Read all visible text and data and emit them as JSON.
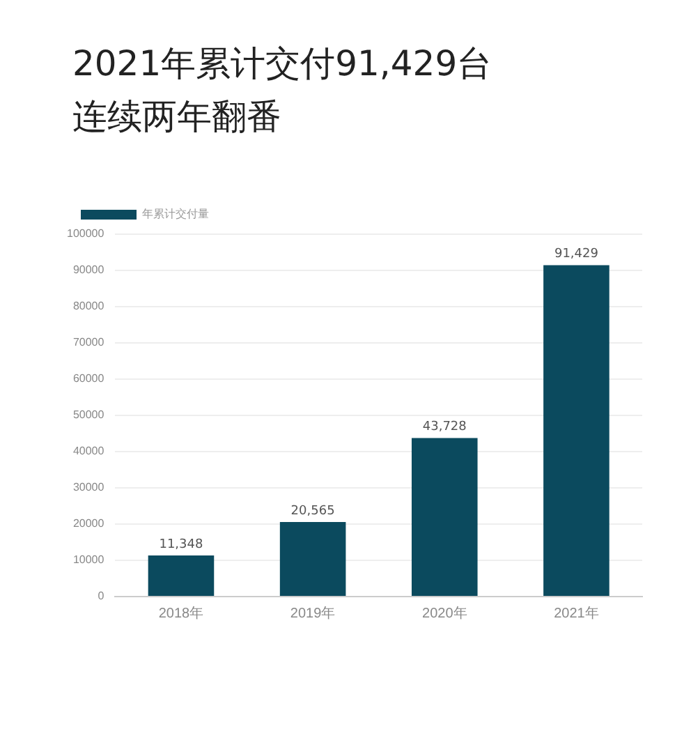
{
  "chart_data": {
    "type": "bar",
    "title": "2021年累计交付91,429台",
    "subtitle": "连续两年翻番",
    "categories": [
      "2018年",
      "2019年",
      "2020年",
      "2021年"
    ],
    "series": [
      {
        "name": "年累计交付量",
        "color": "#0b4a5e",
        "values": [
          11348,
          20565,
          43728,
          91429
        ],
        "value_labels": [
          "11,348",
          "20,565",
          "43,728",
          "91,429"
        ]
      }
    ],
    "ylim": [
      0,
      100000
    ],
    "yticks": [
      0,
      10000,
      20000,
      30000,
      40000,
      50000,
      60000,
      70000,
      80000,
      90000,
      100000
    ],
    "grid": "y",
    "legend": "top left"
  }
}
